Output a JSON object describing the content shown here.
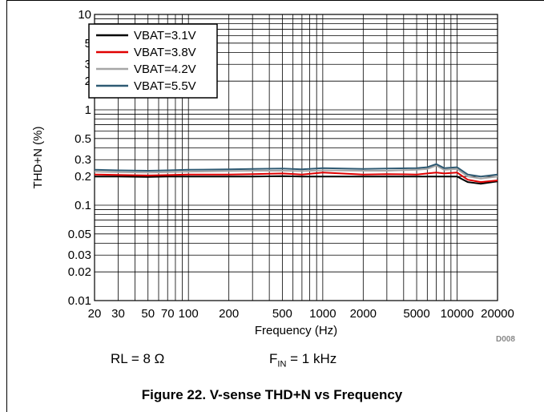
{
  "chart_data": {
    "type": "line",
    "xlabel": "Frequency (Hz)",
    "ylabel": "THD+N (%)",
    "xscale": "log",
    "yscale": "log",
    "xlim": [
      20,
      20000
    ],
    "ylim": [
      0.01,
      10
    ],
    "x_ticks": [
      20,
      30,
      50,
      70,
      100,
      200,
      500,
      1000,
      2000,
      5000,
      10000,
      20000
    ],
    "x_tick_labels": [
      "20",
      "30",
      "50",
      "70",
      "100",
      "200",
      "500",
      "1000",
      "2000",
      "5000",
      "10000",
      "20000"
    ],
    "y_ticks": [
      0.01,
      0.02,
      0.03,
      0.05,
      0.1,
      0.2,
      0.3,
      0.5,
      1,
      2,
      3,
      5,
      10
    ],
    "y_tick_labels": [
      "0.01",
      "0.02",
      "0.03",
      "0.05",
      "0.1",
      "0.2",
      "0.3",
      "0.5",
      "1",
      "2",
      "3",
      "5",
      "10"
    ],
    "grid": true,
    "legend_position": "top-left",
    "x": [
      20,
      30,
      50,
      70,
      100,
      200,
      300,
      500,
      700,
      1000,
      2000,
      3000,
      5000,
      6000,
      7000,
      8000,
      10000,
      12000,
      15000,
      20000
    ],
    "series": [
      {
        "name": "VBAT=3.1V",
        "color": "#000000",
        "values": [
          0.2,
          0.2,
          0.198,
          0.2,
          0.2,
          0.2,
          0.2,
          0.202,
          0.2,
          0.2,
          0.2,
          0.2,
          0.2,
          0.2,
          0.2,
          0.2,
          0.2,
          0.175,
          0.168,
          0.178
        ]
      },
      {
        "name": "VBAT=3.8V",
        "color": "#e00000",
        "values": [
          0.21,
          0.208,
          0.205,
          0.207,
          0.21,
          0.21,
          0.212,
          0.215,
          0.21,
          0.22,
          0.21,
          0.212,
          0.21,
          0.215,
          0.22,
          0.215,
          0.22,
          0.185,
          0.175,
          0.182
        ]
      },
      {
        "name": "VBAT=4.2V",
        "color": "#a6a6a6",
        "values": [
          0.225,
          0.222,
          0.22,
          0.222,
          0.225,
          0.228,
          0.23,
          0.23,
          0.228,
          0.232,
          0.23,
          0.23,
          0.235,
          0.24,
          0.26,
          0.235,
          0.24,
          0.2,
          0.19,
          0.2
        ]
      },
      {
        "name": "VBAT=5.5V",
        "color": "#2e5a73",
        "values": [
          0.235,
          0.232,
          0.23,
          0.232,
          0.235,
          0.238,
          0.24,
          0.242,
          0.238,
          0.245,
          0.24,
          0.242,
          0.245,
          0.25,
          0.27,
          0.245,
          0.25,
          0.21,
          0.2,
          0.21
        ]
      }
    ]
  },
  "conditions": {
    "rl": "RL = 8 Ω",
    "fin_prefix": "F",
    "fin_sub": "IN",
    "fin_suffix": " = 1 kHz"
  },
  "figure_id": "D008",
  "caption": "Figure 22. V-sense THD+N vs Frequency"
}
